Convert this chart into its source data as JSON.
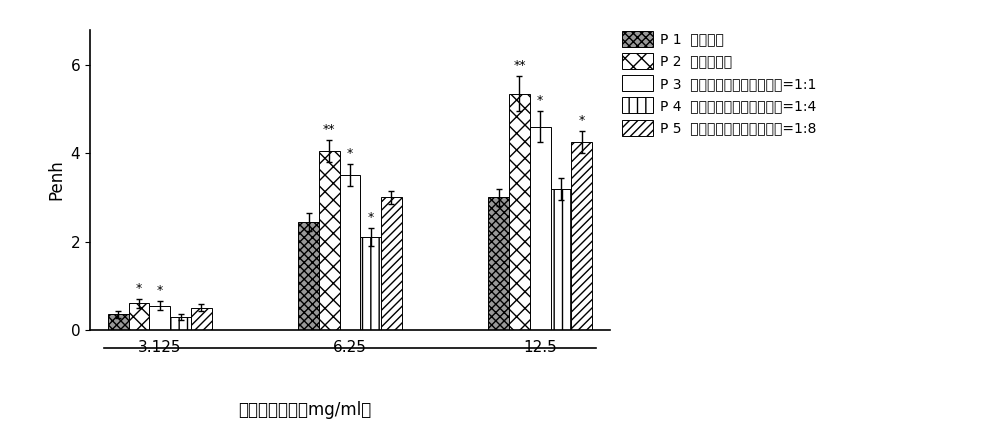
{
  "groups": [
    "3.125",
    "6.25",
    "12.5"
  ],
  "series_labels": [
    "P 1  生理盐水",
    "P 2  依地酸二锴",
    "P 3  依地酸二锴：葡萄糖酸锴=1:1",
    "P 4  依地酸二锴：葡萄糖酸锴=1:4",
    "P 5  依地酸二锴：葡萄糖酸锴=1:8"
  ],
  "legend_labels": [
    "P 1  生理盐水",
    "P 2  依地酸二锴",
    "P 3  依地酸二锴：葡萄糖酸锴=1:1",
    "P 4  依地酸二锴：葡萄糖酸锴=1:4",
    "P 5  依地酸二锴：葡萄糖酸锴=1:8"
  ],
  "values": [
    [
      0.35,
      0.6,
      0.55,
      0.3,
      0.5
    ],
    [
      2.45,
      4.05,
      3.5,
      2.1,
      3.0
    ],
    [
      3.0,
      5.35,
      4.6,
      3.2,
      4.25
    ]
  ],
  "errors": [
    [
      0.07,
      0.1,
      0.1,
      0.07,
      0.08
    ],
    [
      0.2,
      0.25,
      0.25,
      0.2,
      0.15
    ],
    [
      0.2,
      0.4,
      0.35,
      0.25,
      0.25
    ]
  ],
  "significance": [
    [
      "",
      "*",
      "*",
      "",
      ""
    ],
    [
      "",
      "**",
      "*",
      "*",
      ""
    ],
    [
      "",
      "**",
      "*",
      "",
      "*"
    ]
  ],
  "ylabel": "Penh",
  "xlabel": "乙酰胆碱浓度（mg/ml）",
  "ylim": [
    0,
    6.8
  ],
  "yticks": [
    0,
    2,
    4,
    6
  ],
  "bar_width": 0.12,
  "facecolor": "#ffffff",
  "edgecolor": "#000000",
  "hatch_patterns": [
    "xxxx",
    "xx",
    "==",
    "||",
    "////"
  ],
  "face_colors": [
    "#999999",
    "#ffffff",
    "#ffffff",
    "#ffffff",
    "#ffffff"
  ],
  "significance_fontsize": 9,
  "label_fontsize": 12,
  "tick_fontsize": 11,
  "legend_fontsize": 10,
  "group_centers": [
    0.45,
    1.55,
    2.65
  ]
}
